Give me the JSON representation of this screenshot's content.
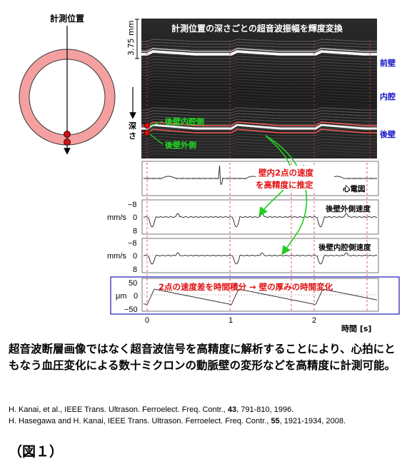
{
  "diagram": {
    "position_label": "計測位置",
    "depth_label": "深さ",
    "scale_label": "3.75 mm",
    "mmode_title": "計測位置の深さごとの超音波振幅を輝度変換",
    "wall_labels": {
      "anterior": "前壁",
      "lumen": "内腔",
      "posterior": "後壁"
    },
    "inner_point_label": "後壁内腔側",
    "outer_point_label": "後壁外側",
    "estimate_label_line1": "壁内2点の速度",
    "estimate_label_line2": "を高精度に推定",
    "ecg_label": "心電図",
    "outer_velocity_label": "後壁外側速度",
    "inner_velocity_label": "後壁内腔側速度",
    "velocity_unit": "mm/s",
    "velocity_ticks": [
      "−8",
      "0",
      "8"
    ],
    "thickness_unit": "μm",
    "thickness_ticks": [
      "50",
      "0",
      "−50"
    ],
    "thickness_label": "2点の速度差を時間積分 → 壁の厚みの時間変化",
    "time_ticks": [
      "0",
      "1",
      "2"
    ],
    "time_axis_label": "時間 [s]",
    "colors": {
      "label_blue": "#1010c8",
      "ring": "#f4a0a0",
      "marker": "#d41010",
      "arrow_green": "#22cc22",
      "annotation_red": "#e01010",
      "frame_blue": "#1a1ab0"
    }
  },
  "caption": "超音波断層画像ではなく超音波信号を高精度に解析することにより、心拍にともなう血圧変化による数十ミクロンの動脈壁の変形などを高精度に計測可能。",
  "references": [
    {
      "authors": "H. Kanai, et al., IEEE Trans. Ultrason. Ferroelect. Freq. Contr., ",
      "volume": "43",
      "rest": ", 791-810, 1996."
    },
    {
      "authors": "H. Hasegawa and H. Kanai, IEEE Trans. Ultrason. Ferroelect. Freq. Contr., ",
      "volume": "55",
      "rest": ", 1921-1934, 2008."
    }
  ],
  "figure_label": "（図１）"
}
